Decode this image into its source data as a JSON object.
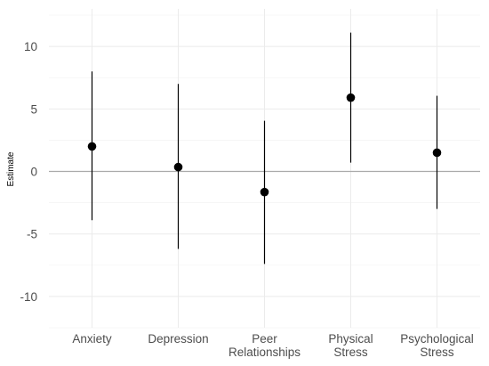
{
  "chart_data": {
    "type": "scatter",
    "subtype": "point-range",
    "title": "",
    "xlabel": "",
    "ylabel": "Estimate",
    "ylim": [
      -12.5,
      13
    ],
    "yticks": [
      -10,
      -5,
      0,
      5,
      10
    ],
    "reference_line_y": 0,
    "grid": true,
    "legend": "none",
    "categories": [
      [
        "Anxiety"
      ],
      [
        "Depression"
      ],
      [
        "Peer",
        "Relationships"
      ],
      [
        "Physical",
        "Stress"
      ],
      [
        "Psychological",
        "Stress"
      ]
    ],
    "series": [
      {
        "estimates": [
          2.0,
          0.35,
          -1.65,
          5.9,
          1.5
        ],
        "lower": [
          -3.9,
          -6.2,
          -7.4,
          0.7,
          -3.0
        ],
        "upper": [
          8.0,
          7.0,
          4.05,
          11.1,
          6.05
        ]
      }
    ],
    "colors": {
      "point": "#000000",
      "zero_line": "#aaaaaa",
      "grid": "#ebebeb"
    }
  }
}
